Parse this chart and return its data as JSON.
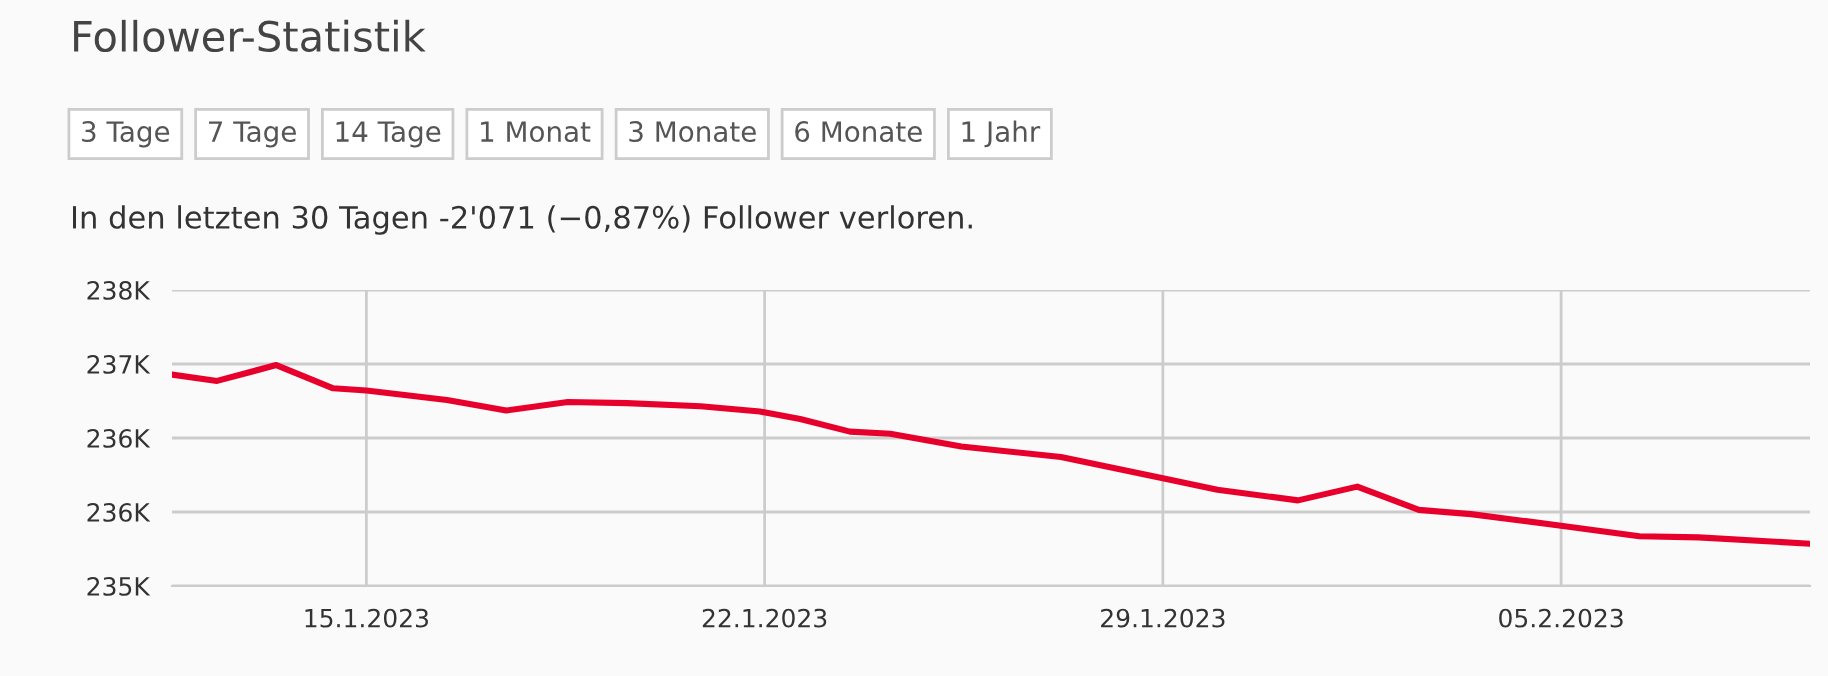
{
  "chart_data": {
    "type": "line",
    "title": "Follower-Statistik",
    "subtitle": "In den letzten 30 Tagen -2'071 (−0,87%) Follower verloren.",
    "annotations": [
      "3 Tage",
      "7 Tage",
      "14 Tage",
      "1 Monat",
      "3 Monate",
      "6 Monate",
      "1 Jahr"
    ],
    "x": [
      "2023-01-11T14:00",
      "2023-01-12T09:00",
      "2023-01-13T10:00",
      "2023-01-14T10:00",
      "2023-01-15T00:00",
      "2023-01-16T10:00",
      "2023-01-17T11:00",
      "2023-01-18T13:00",
      "2023-01-19T14:00",
      "2023-01-20T21:00",
      "2023-01-21T22:00",
      "2023-01-22T15:00",
      "2023-01-23T12:00",
      "2023-01-24T05:00",
      "2023-01-25T11:00",
      "2023-01-27T05:00",
      "2023-01-29T00:00",
      "2023-01-29T23:00",
      "2023-01-31T09:00",
      "2023-02-01T10:00",
      "2023-02-02T12:00",
      "2023-02-03T10:00",
      "2023-02-05T00:00",
      "2023-02-06T09:00",
      "2023-02-07T10:00",
      "2023-02-09T09:00"
    ],
    "series": [
      {
        "color": "#e8002d",
        "values": [
          237000,
          236940,
          237090,
          236870,
          236850,
          236760,
          236660,
          236740,
          236730,
          236700,
          236650,
          236580,
          236460,
          236440,
          236320,
          236220,
          236020,
          235910,
          235810,
          235940,
          235720,
          235680,
          235570,
          235470,
          235460,
          235400
        ]
      }
    ],
    "xlim": [
      "2023-01-11T14:00",
      "2023-02-09T09:00"
    ],
    "xticks": [
      {
        "value": "2023-01-15",
        "label": "15.1.2023"
      },
      {
        "value": "2023-01-22",
        "label": "22.1.2023"
      },
      {
        "value": "2023-01-29",
        "label": "29.1.2023"
      },
      {
        "value": "2023-02-05",
        "label": "05.2.2023"
      }
    ],
    "ylim": [
      235000,
      237800
    ],
    "yticks": [
      {
        "value": 235000,
        "label": "235K"
      },
      {
        "value": 235700,
        "label": "236K"
      },
      {
        "value": 236400,
        "label": "236K"
      },
      {
        "value": 237100,
        "label": "237K"
      },
      {
        "value": 237800,
        "label": "238K"
      }
    ],
    "grid": true,
    "marker": "none",
    "line_style": "solid",
    "legend": false
  }
}
